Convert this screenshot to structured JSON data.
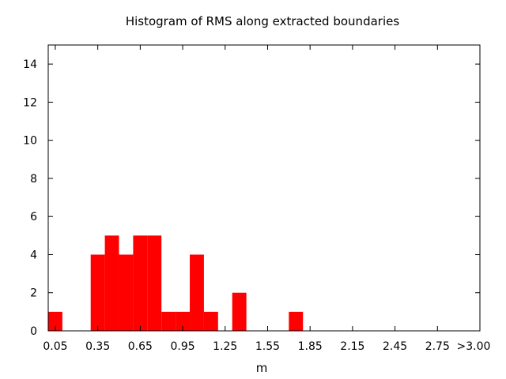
{
  "chart_data": {
    "type": "bar",
    "title": "Histogram of RMS along extracted boundaries",
    "xlabel": "m",
    "ylabel": "",
    "bin_width": 0.1,
    "bin_start": 0.0,
    "xlim": [
      0.0,
      3.05
    ],
    "ylim": [
      0,
      15
    ],
    "grid": false,
    "x_tick_labels": [
      "0.05",
      "0.35",
      "0.65",
      "0.95",
      "1.25",
      "1.55",
      "1.85",
      "2.15",
      "2.45",
      "2.75",
      ">3.00"
    ],
    "x_tick_values": [
      0.05,
      0.35,
      0.65,
      0.95,
      1.25,
      1.55,
      1.85,
      2.15,
      2.45,
      2.75,
      3.05
    ],
    "y_tick_labels": [
      "0",
      "2",
      "4",
      "6",
      "8",
      "10",
      "12",
      "14"
    ],
    "y_tick_values": [
      0,
      2,
      4,
      6,
      8,
      10,
      12,
      14
    ],
    "categories": [
      "0.05",
      "0.15",
      "0.25",
      "0.35",
      "0.45",
      "0.55",
      "0.65",
      "0.75",
      "0.85",
      "0.95",
      "1.05",
      "1.15",
      "1.25",
      "1.35",
      "1.45",
      "1.55",
      "1.65",
      "1.75",
      "1.85",
      "1.95",
      "2.05",
      "2.15",
      "2.25",
      "2.35",
      "2.45",
      "2.55",
      "2.65",
      "2.75",
      "2.85",
      "2.95",
      ">3.00"
    ],
    "values": [
      1,
      0,
      0,
      4,
      5,
      4,
      5,
      5,
      1,
      1,
      4,
      1,
      0,
      2,
      0,
      0,
      0,
      1,
      0,
      0,
      0,
      0,
      0,
      0,
      0,
      0,
      0,
      0,
      0,
      0,
      0
    ],
    "bar_color": "#ff0000"
  }
}
